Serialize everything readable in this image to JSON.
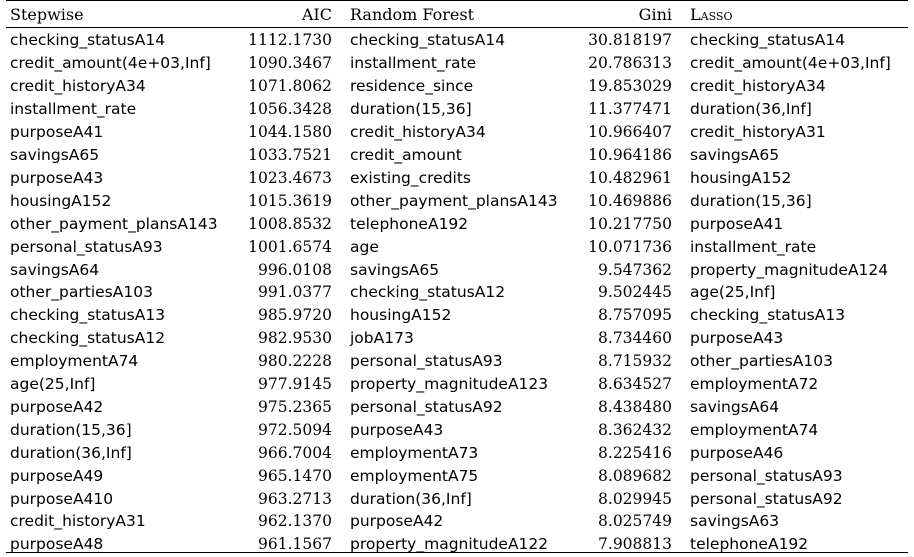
{
  "headers": {
    "stepwise": "Stepwise",
    "aic": "AIC",
    "random_forest": "Random Forest",
    "gini": "Gini",
    "lasso": "Lasso"
  },
  "rows": [
    {
      "stepwise": "checking_statusA14",
      "aic": "1112.1730",
      "rf": "checking_statusA14",
      "gini": "30.818197",
      "lasso": "checking_statusA14"
    },
    {
      "stepwise": "credit_amount(4e+03,Inf]",
      "aic": "1090.3467",
      "rf": "installment_rate",
      "gini": "20.786313",
      "lasso": "credit_amount(4e+03,Inf]"
    },
    {
      "stepwise": "credit_historyA34",
      "aic": "1071.8062",
      "rf": "residence_since",
      "gini": "19.853029",
      "lasso": "credit_historyA34"
    },
    {
      "stepwise": "installment_rate",
      "aic": "1056.3428",
      "rf": "duration(15,36]",
      "gini": "11.377471",
      "lasso": "duration(36,Inf]"
    },
    {
      "stepwise": "purposeA41",
      "aic": "1044.1580",
      "rf": "credit_historyA34",
      "gini": "10.966407",
      "lasso": "credit_historyA31"
    },
    {
      "stepwise": "savingsA65",
      "aic": "1033.7521",
      "rf": "credit_amount",
      "gini": "10.964186",
      "lasso": "savingsA65"
    },
    {
      "stepwise": "purposeA43",
      "aic": "1023.4673",
      "rf": "existing_credits",
      "gini": "10.482961",
      "lasso": "housingA152"
    },
    {
      "stepwise": "housingA152",
      "aic": "1015.3619",
      "rf": "other_payment_plansA143",
      "gini": "10.469886",
      "lasso": "duration(15,36]"
    },
    {
      "stepwise": "other_payment_plansA143",
      "aic": "1008.8532",
      "rf": "telephoneA192",
      "gini": "10.217750",
      "lasso": "purposeA41"
    },
    {
      "stepwise": "personal_statusA93",
      "aic": "1001.6574",
      "rf": "age",
      "gini": "10.071736",
      "lasso": "installment_rate"
    },
    {
      "stepwise": "savingsA64",
      "aic": "996.0108",
      "rf": "savingsA65",
      "gini": "9.547362",
      "lasso": "property_magnitudeA124"
    },
    {
      "stepwise": "other_partiesA103",
      "aic": "991.0377",
      "rf": "checking_statusA12",
      "gini": "9.502445",
      "lasso": "age(25,Inf]"
    },
    {
      "stepwise": "checking_statusA13",
      "aic": "985.9720",
      "rf": "housingA152",
      "gini": "8.757095",
      "lasso": "checking_statusA13"
    },
    {
      "stepwise": "checking_statusA12",
      "aic": "982.9530",
      "rf": "jobA173",
      "gini": "8.734460",
      "lasso": "purposeA43"
    },
    {
      "stepwise": "employmentA74",
      "aic": "980.2228",
      "rf": "personal_statusA93",
      "gini": "8.715932",
      "lasso": "other_partiesA103"
    },
    {
      "stepwise": "age(25,Inf]",
      "aic": "977.9145",
      "rf": "property_magnitudeA123",
      "gini": "8.634527",
      "lasso": "employmentA72"
    },
    {
      "stepwise": "purposeA42",
      "aic": "975.2365",
      "rf": "personal_statusA92",
      "gini": "8.438480",
      "lasso": "savingsA64"
    },
    {
      "stepwise": "duration(15,36]",
      "aic": "972.5094",
      "rf": "purposeA43",
      "gini": "8.362432",
      "lasso": "employmentA74"
    },
    {
      "stepwise": "duration(36,Inf]",
      "aic": "966.7004",
      "rf": "employmentA73",
      "gini": "8.225416",
      "lasso": "purposeA46"
    },
    {
      "stepwise": "purposeA49",
      "aic": "965.1470",
      "rf": "employmentA75",
      "gini": "8.089682",
      "lasso": "personal_statusA93"
    },
    {
      "stepwise": "purposeA410",
      "aic": "963.2713",
      "rf": "duration(36,Inf]",
      "gini": "8.029945",
      "lasso": "personal_statusA92"
    },
    {
      "stepwise": "credit_historyA31",
      "aic": "962.1370",
      "rf": "purposeA42",
      "gini": "8.025749",
      "lasso": "savingsA63"
    },
    {
      "stepwise": "purposeA48",
      "aic": "961.1567",
      "rf": "property_magnitudeA122",
      "gini": "7.908813",
      "lasso": "telephoneA192"
    }
  ]
}
